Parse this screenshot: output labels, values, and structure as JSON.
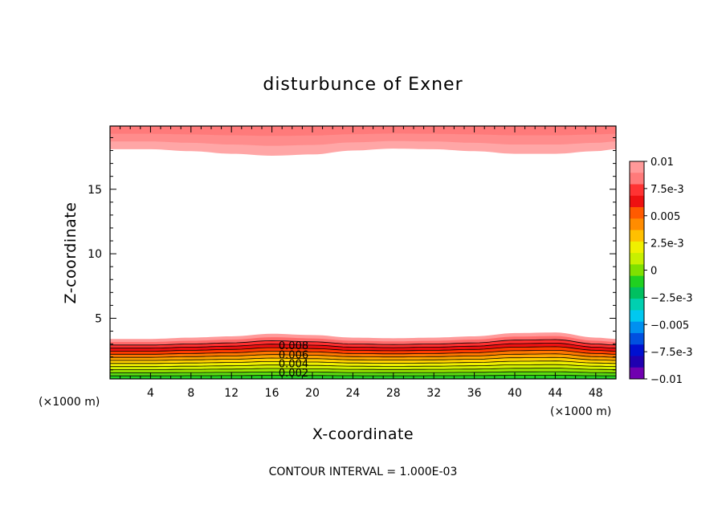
{
  "chart_data": {
    "type": "contour",
    "title": "disturbunce of Exner",
    "xlabel": "X-coordinate",
    "ylabel": "Z-coordinate",
    "x_unit_left": "(×1000 m)",
    "x_unit_right": "(×1000 m)",
    "xlim": [
      0,
      50
    ],
    "ylim": [
      0.3,
      19.9
    ],
    "xticks": [
      4,
      8,
      12,
      16,
      20,
      24,
      28,
      32,
      36,
      40,
      44,
      48
    ],
    "yticks": [
      5,
      10,
      15
    ],
    "footer": "CONTOUR INTERVAL = 1.000E-03",
    "contour_labels": [
      {
        "text": "0.008",
        "x": 17.5,
        "y": 2.9
      },
      {
        "text": "0.006",
        "x": 17.5,
        "y": 2.2
      },
      {
        "text": "0.004",
        "x": 17.5,
        "y": 1.5
      },
      {
        "text": "0.002",
        "x": 17.5,
        "y": 0.8
      }
    ],
    "colorbar": {
      "labels": [
        "0.01",
        "7.5e-3",
        "0.005",
        "2.5e-3",
        "0",
        "−2.5e-3",
        "−0.005",
        "−7.5e-3",
        "−0.01"
      ],
      "colors": [
        "#ff9999",
        "#ff7a7a",
        "#ff3333",
        "#ee1111",
        "#ff5a00",
        "#ff8c00",
        "#ffc000",
        "#f0f000",
        "#c8f000",
        "#7fe000",
        "#20d020",
        "#00c060",
        "#00d0b0",
        "#00c8f0",
        "#0090f0",
        "#0050e0",
        "#0010d0",
        "#2000b0",
        "#7000b0"
      ],
      "vmin": -0.01,
      "vmax": 0.01
    },
    "lower_band": {
      "x": [
        0,
        4,
        8,
        12,
        16,
        20,
        24,
        28,
        32,
        36,
        40,
        44,
        48,
        50
      ],
      "top": [
        3.4,
        3.4,
        3.5,
        3.6,
        3.8,
        3.7,
        3.5,
        3.45,
        3.5,
        3.6,
        3.85,
        3.9,
        3.5,
        3.4
      ]
    },
    "upper_band": {
      "x": [
        0,
        4,
        8,
        12,
        16,
        20,
        24,
        28,
        32,
        36,
        40,
        44,
        48,
        50
      ],
      "bottom": [
        18.1,
        18.1,
        17.95,
        17.75,
        17.6,
        17.7,
        18.0,
        18.15,
        18.1,
        17.95,
        17.75,
        17.75,
        17.95,
        18.1
      ]
    }
  }
}
